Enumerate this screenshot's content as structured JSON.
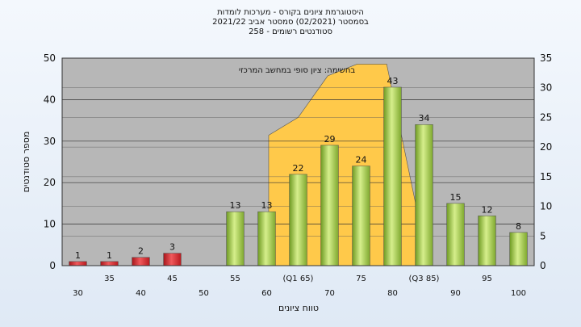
{
  "chart_data": {
    "type": "bar",
    "title_lines": [
      "היסטוגרמת ציונים בקורס - מערכות לומדות",
      "בסמסטר  (02/2021)  סמסטר אביב 2021/22",
      "סטודנטים רשומים - 258"
    ],
    "annotation": "בחשימה: ציון סופי במחשב המרכזי",
    "xlabel": "טווח ציונים",
    "ylabel": "מספר סטודנטים",
    "ylim": [
      0,
      50
    ],
    "y_ticks": [
      0,
      10,
      20,
      30,
      40,
      50
    ],
    "y2lim": [
      0,
      35
    ],
    "y2_ticks": [
      0,
      5,
      10,
      15,
      20,
      25,
      30,
      35
    ],
    "categories": [
      "30",
      "35",
      "40",
      "45",
      "50",
      "55",
      "60",
      "(Q1 65)",
      "70",
      "75",
      "80",
      "(Q3 85)",
      "90",
      "95",
      "100"
    ],
    "label_row": [
      1,
      0,
      1,
      0,
      1,
      0,
      1,
      0,
      1,
      0,
      1,
      0,
      1,
      0,
      1
    ],
    "values": [
      1,
      1,
      2,
      3,
      null,
      13,
      13,
      22,
      29,
      24,
      43,
      34,
      15,
      12,
      8
    ],
    "value_labels": [
      "1",
      "1",
      "2",
      "3",
      "",
      "13",
      "13",
      "22",
      "29",
      "24",
      "43",
      "34",
      "15",
      "12",
      "8"
    ],
    "bar_colors": [
      "red",
      "red",
      "red",
      "red",
      "none",
      "green",
      "green",
      "green",
      "green",
      "green",
      "green",
      "green",
      "green",
      "green",
      "green"
    ],
    "cumulative_area": [
      {
        "x": 65,
        "y2": 22
      },
      {
        "x": 70,
        "y2": 25
      },
      {
        "x": 75,
        "y2": 32
      },
      {
        "x": 80,
        "y2": 34
      },
      {
        "x": 85,
        "y2": 34
      },
      {
        "x": 90,
        "y2": 10
      }
    ],
    "colors": {
      "plot_bg": "#b7b7b7",
      "area": "#ffc94a",
      "bar_red": "#e0262b",
      "bar_green": "#9ec943",
      "grid": "#333333"
    },
    "grid": true
  }
}
